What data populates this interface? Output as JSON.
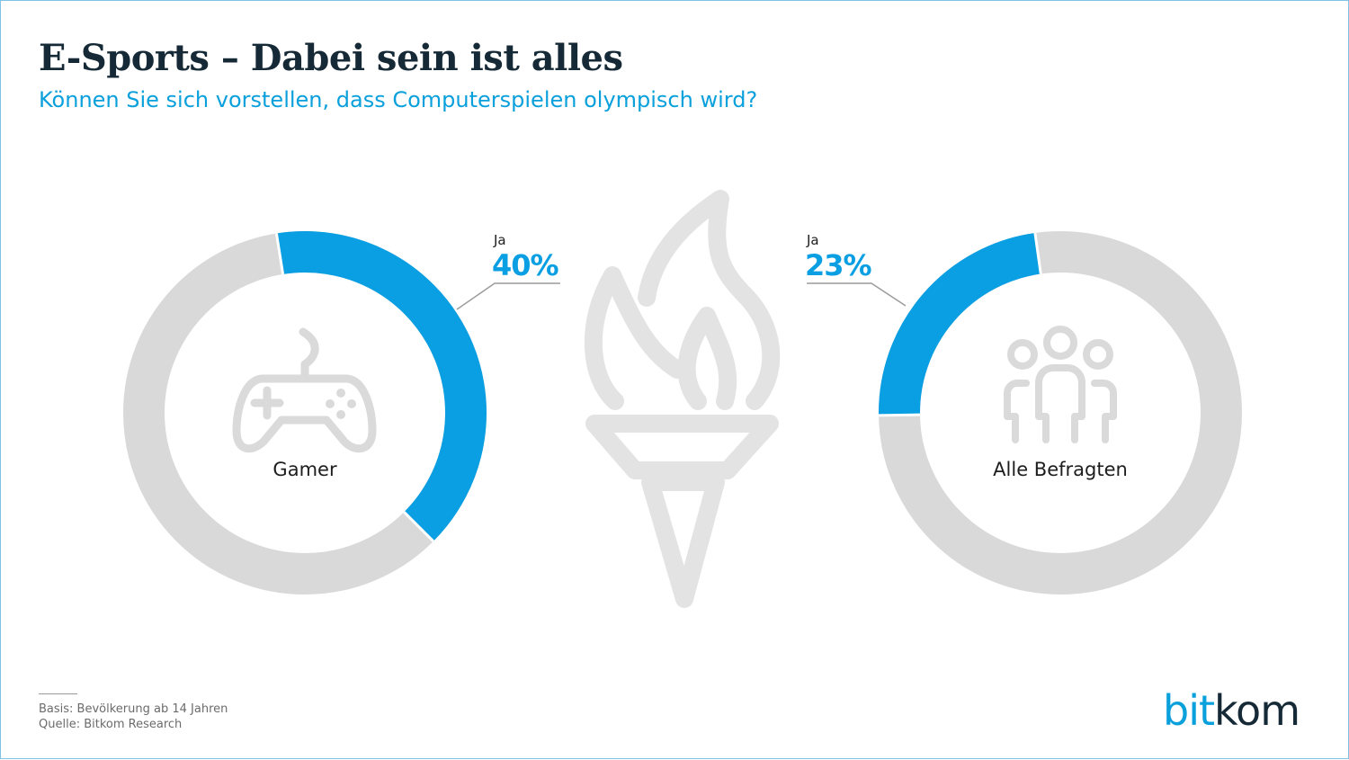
{
  "header": {
    "title": "E-Sports – Dabei sein ist alles",
    "subtitle": "Können Sie sich vorstellen, dass Computerspielen olympisch wird?"
  },
  "chart_data": [
    {
      "type": "donut",
      "group": "Gamer",
      "icon": "gamepad-icon",
      "series": [
        {
          "name": "Ja",
          "value": 40,
          "label": "40%"
        }
      ]
    },
    {
      "type": "donut",
      "group": "Alle Befragten",
      "icon": "people-icon",
      "series": [
        {
          "name": "Ja",
          "value": 23,
          "label": "23%"
        }
      ]
    }
  ],
  "colors": {
    "accent": "#0a9fe2",
    "remainder": "#d9d9d9",
    "title": "#152a36",
    "icon": "#dadada"
  },
  "decoration": {
    "center_icon": "olympic-torch-icon"
  },
  "footer": {
    "basis": "Basis: Bevölkerung ab 14 Jahren",
    "source": "Quelle: Bitkom Research"
  },
  "logo": {
    "part1": "bit",
    "part2": "kom"
  }
}
